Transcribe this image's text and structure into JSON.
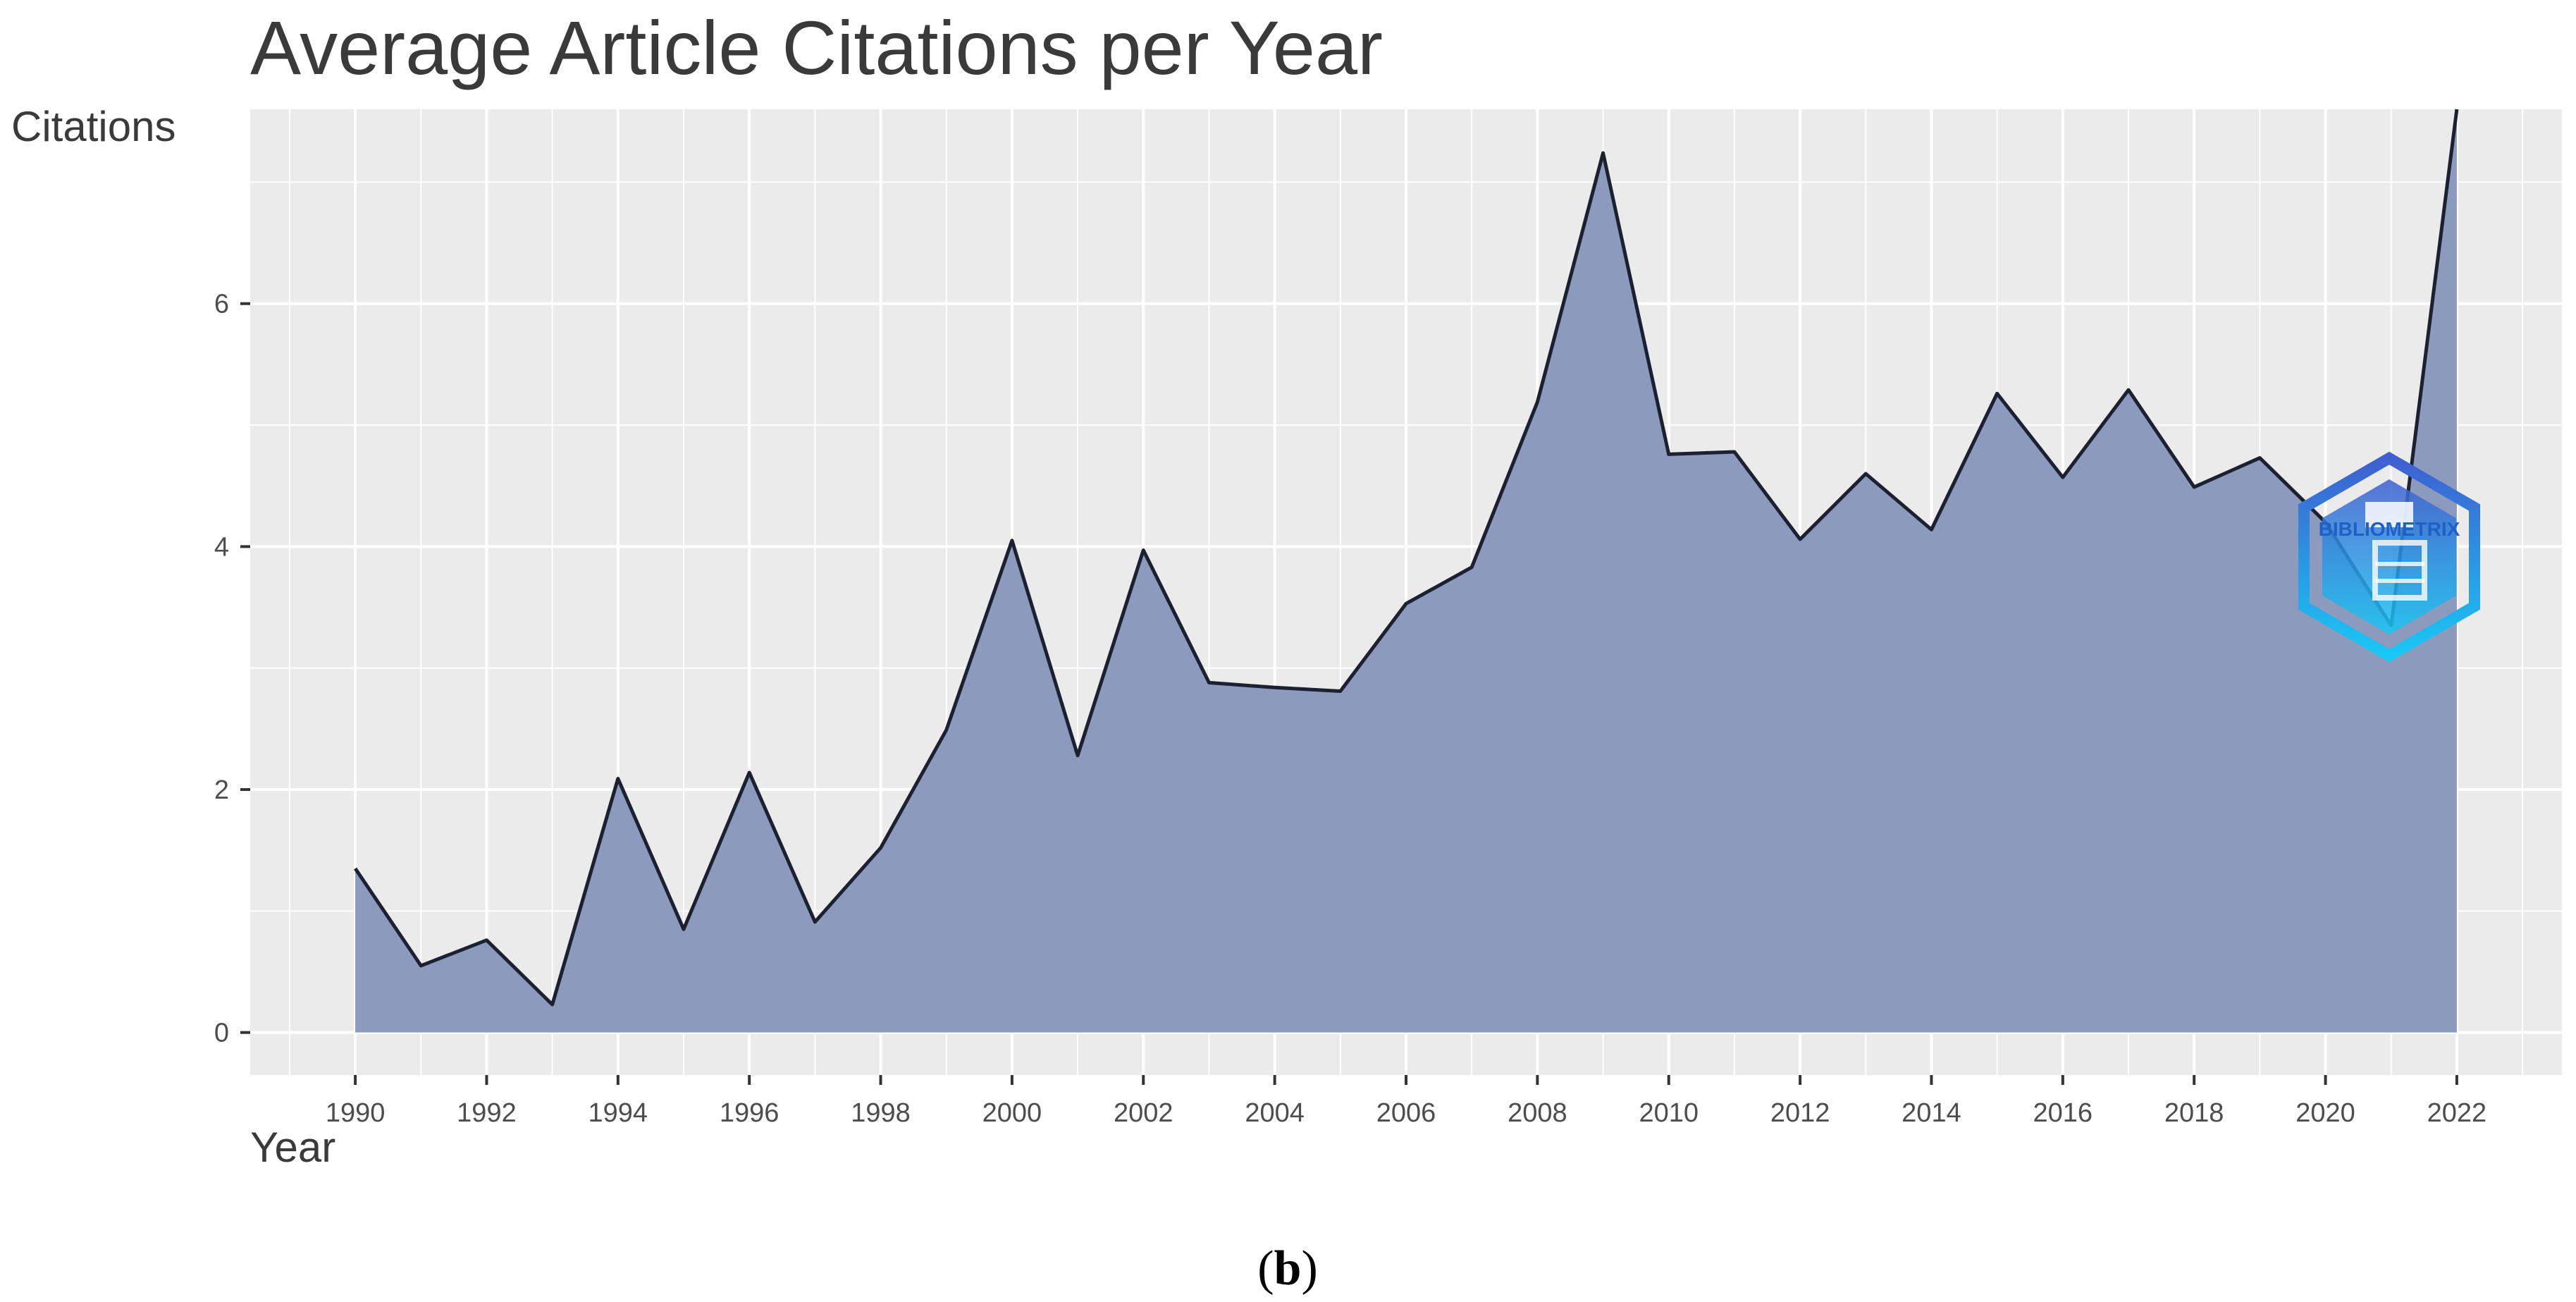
{
  "chart_data": {
    "type": "area",
    "title": "Average Article Citations per Year",
    "xlabel": "Year",
    "ylabel": "Citations",
    "x": [
      1990,
      1991,
      1992,
      1993,
      1994,
      1995,
      1996,
      1997,
      1998,
      1999,
      2000,
      2001,
      2002,
      2003,
      2004,
      2005,
      2006,
      2007,
      2008,
      2009,
      2010,
      2011,
      2012,
      2013,
      2014,
      2015,
      2016,
      2017,
      2018,
      2019,
      2020,
      2021,
      2022
    ],
    "values": [
      1.35,
      0.55,
      0.76,
      0.23,
      2.09,
      0.85,
      2.14,
      0.91,
      1.52,
      2.49,
      4.05,
      2.28,
      3.97,
      2.88,
      2.84,
      2.81,
      3.53,
      3.83,
      5.19,
      7.24,
      4.76,
      4.78,
      4.06,
      4.6,
      4.14,
      5.26,
      4.57,
      5.29,
      4.49,
      4.73,
      4.2,
      3.35,
      7.6
    ],
    "x_ticks": [
      "1990",
      "1992",
      "1994",
      "1996",
      "1998",
      "2000",
      "2002",
      "2004",
      "2006",
      "2008",
      "2010",
      "2012",
      "2014",
      "2016",
      "2018",
      "2020",
      "2022"
    ],
    "y_ticks": [
      "0",
      "2",
      "4",
      "6"
    ],
    "xlim": [
      1988.4,
      2023.6
    ],
    "ylim": [
      -0.35,
      7.6
    ],
    "grid": true,
    "legend": "none",
    "colors": {
      "fill": "#8a98bc",
      "line": "#1c2131",
      "panel": "#ebebeb",
      "grid": "#ffffff"
    }
  },
  "watermark": {
    "text": "BIBLIOMETRIX",
    "icon": "bibliometrix-logo-icon"
  },
  "caption": {
    "open": "(",
    "label": "b",
    "close": ")"
  }
}
